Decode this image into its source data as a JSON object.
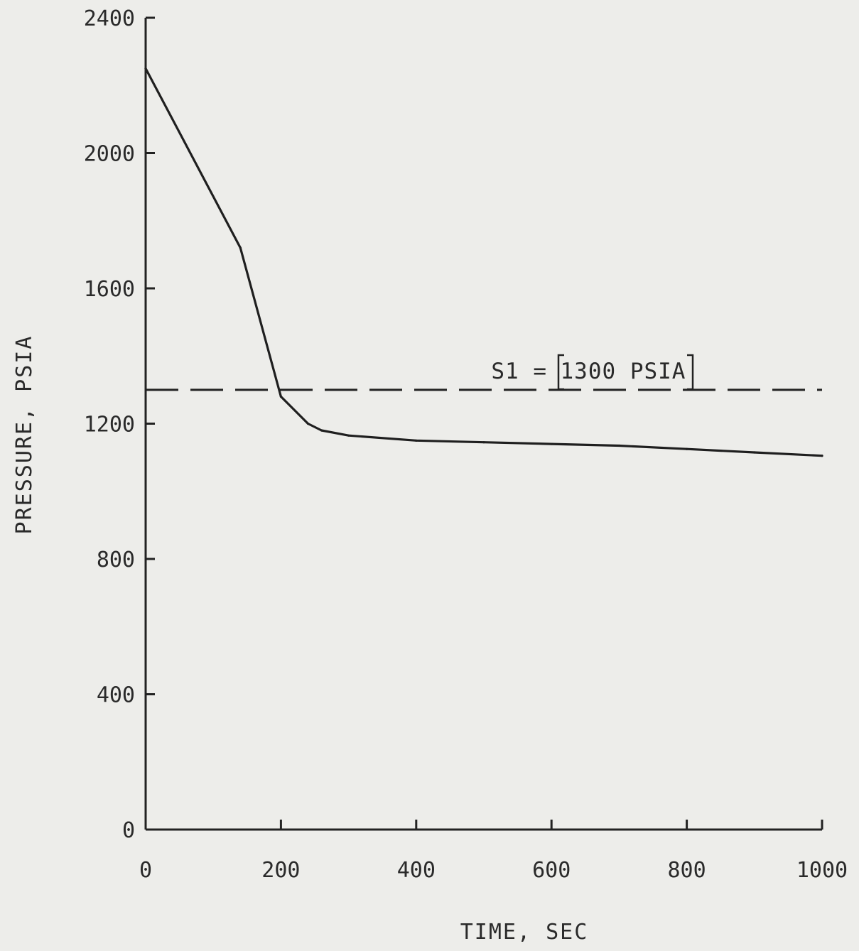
{
  "chart_data": {
    "type": "line",
    "xlabel": "TIME, SEC",
    "ylabel": "PRESSURE, PSIA",
    "xlim": [
      0,
      1000
    ],
    "ylim": [
      0,
      2400
    ],
    "xticks": [
      0,
      200,
      400,
      600,
      800,
      1000
    ],
    "yticks": [
      0,
      400,
      800,
      1200,
      1600,
      2000,
      2400
    ],
    "grid": false,
    "series": [
      {
        "color": "#1f1f1f",
        "x": [
          0,
          140,
          200,
          240,
          260,
          300,
          400,
          500,
          600,
          700,
          800,
          900,
          1000
        ],
        "y": [
          2250,
          1720,
          1280,
          1200,
          1180,
          1165,
          1150,
          1145,
          1140,
          1135,
          1125,
          1115,
          1105
        ]
      }
    ],
    "reference_line": {
      "y": 1300,
      "style": "dashed",
      "label_prefix": "S1 =",
      "label_value": "1300 PSIA"
    }
  }
}
